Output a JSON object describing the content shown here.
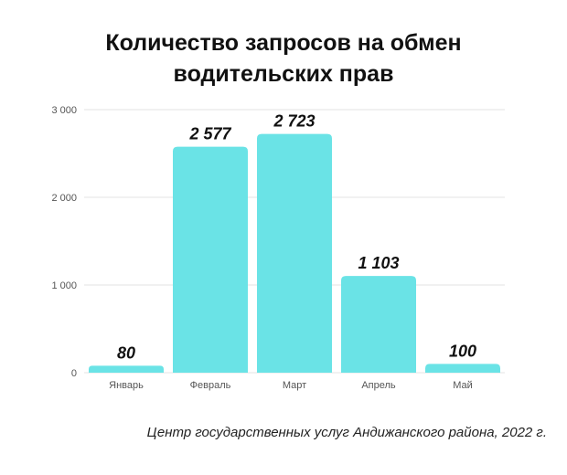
{
  "chart_data": {
    "type": "bar",
    "title_lines": [
      "Количество запросов на обмен",
      "водительских прав"
    ],
    "categories": [
      "Январь",
      "Февраль",
      "Март",
      "Апрель",
      "Май"
    ],
    "values": [
      80,
      2577,
      2723,
      1103,
      100
    ],
    "value_labels": [
      "80",
      "2 577",
      "2 723",
      "1 103",
      "100"
    ],
    "yticks": [
      0,
      1000,
      2000,
      3000
    ],
    "ytick_labels": [
      "0",
      "1 000",
      "2 000",
      "3 000"
    ],
    "ylim": [
      0,
      3000
    ],
    "grid": true,
    "legend": "none",
    "bar_color": "#6ae3e6",
    "grid_color": "#e3e3e3"
  },
  "source_note": "Центр государственных услуг Андижанского района, 2022 г."
}
